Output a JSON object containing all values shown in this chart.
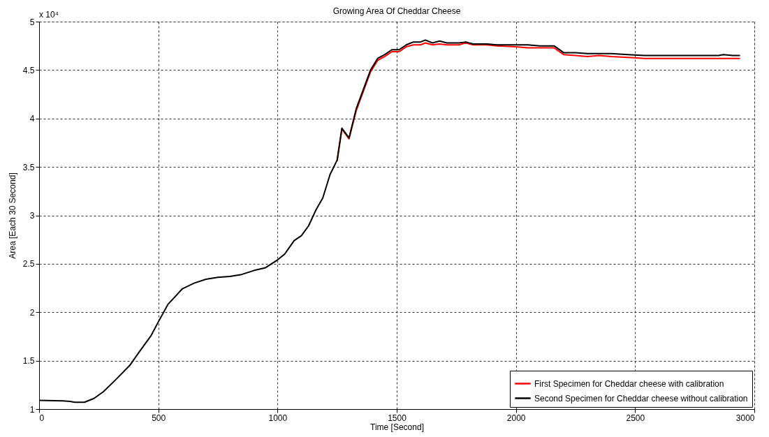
{
  "chart_data": {
    "type": "line",
    "title": "Growing Area Of Cheddar Cheese",
    "xlabel": "Time [Second]",
    "ylabel": "Area [Each 30 Second]",
    "x": [
      0,
      100,
      130,
      150,
      190,
      230,
      270,
      320,
      380,
      420,
      470,
      500,
      540,
      600,
      650,
      700,
      750,
      800,
      850,
      900,
      950,
      1000,
      1030,
      1070,
      1100,
      1130,
      1160,
      1190,
      1220,
      1250,
      1270,
      1300,
      1330,
      1360,
      1390,
      1420,
      1450,
      1480,
      1510,
      1540,
      1570,
      1600,
      1620,
      1650,
      1680,
      1710,
      1760,
      1790,
      1820,
      1880,
      1920,
      2000,
      2050,
      2100,
      2160,
      2200,
      2250,
      2300,
      2350,
      2400,
      2470,
      2540,
      2650,
      2850,
      2870,
      2910,
      2940
    ],
    "series": [
      {
        "name": "First Specimen for Cheddar cheese with calibration",
        "color": "#ff0000",
        "values": [
          null,
          null,
          null,
          null,
          null,
          null,
          null,
          null,
          null,
          null,
          null,
          null,
          null,
          null,
          null,
          null,
          null,
          null,
          null,
          null,
          null,
          null,
          null,
          null,
          null,
          null,
          null,
          null,
          null,
          3.56,
          3.89,
          3.79,
          4.08,
          4.28,
          4.48,
          4.6,
          4.64,
          4.69,
          4.69,
          4.74,
          4.76,
          4.76,
          4.78,
          4.76,
          4.77,
          4.76,
          4.76,
          4.78,
          4.76,
          4.76,
          4.75,
          4.74,
          4.73,
          4.73,
          4.73,
          4.66,
          4.65,
          4.64,
          4.65,
          4.64,
          4.63,
          4.62,
          4.62,
          4.62,
          4.62,
          4.62,
          4.62
        ]
      },
      {
        "name": "Second Specimen for Cheddar cheese without calibration",
        "color": "#000000",
        "values": [
          1.09,
          1.085,
          1.08,
          1.07,
          1.07,
          1.11,
          1.18,
          1.3,
          1.45,
          1.59,
          1.76,
          1.9,
          2.08,
          2.24,
          2.3,
          2.34,
          2.36,
          2.37,
          2.39,
          2.43,
          2.46,
          2.54,
          2.6,
          2.74,
          2.79,
          2.89,
          3.05,
          3.18,
          3.42,
          3.57,
          3.9,
          3.8,
          4.1,
          4.3,
          4.5,
          4.62,
          4.66,
          4.71,
          4.71,
          4.76,
          4.79,
          4.79,
          4.81,
          4.78,
          4.8,
          4.78,
          4.78,
          4.79,
          4.77,
          4.77,
          4.76,
          4.76,
          4.76,
          4.75,
          4.75,
          4.68,
          4.68,
          4.67,
          4.67,
          4.67,
          4.66,
          4.65,
          4.65,
          4.65,
          4.66,
          4.65,
          4.65
        ]
      }
    ],
    "xlim": [
      0,
      3000
    ],
    "xticks": [
      0,
      500,
      1000,
      1500,
      2000,
      2500,
      3000
    ],
    "ylim": [
      1,
      5
    ],
    "yticks": [
      1,
      1.5,
      2,
      2.5,
      3,
      3.5,
      4,
      4.5,
      5
    ],
    "annotations": [
      "x 10⁴"
    ],
    "grid": true,
    "legend": "bottom right",
    "line_style": "solid",
    "marker": "none"
  }
}
